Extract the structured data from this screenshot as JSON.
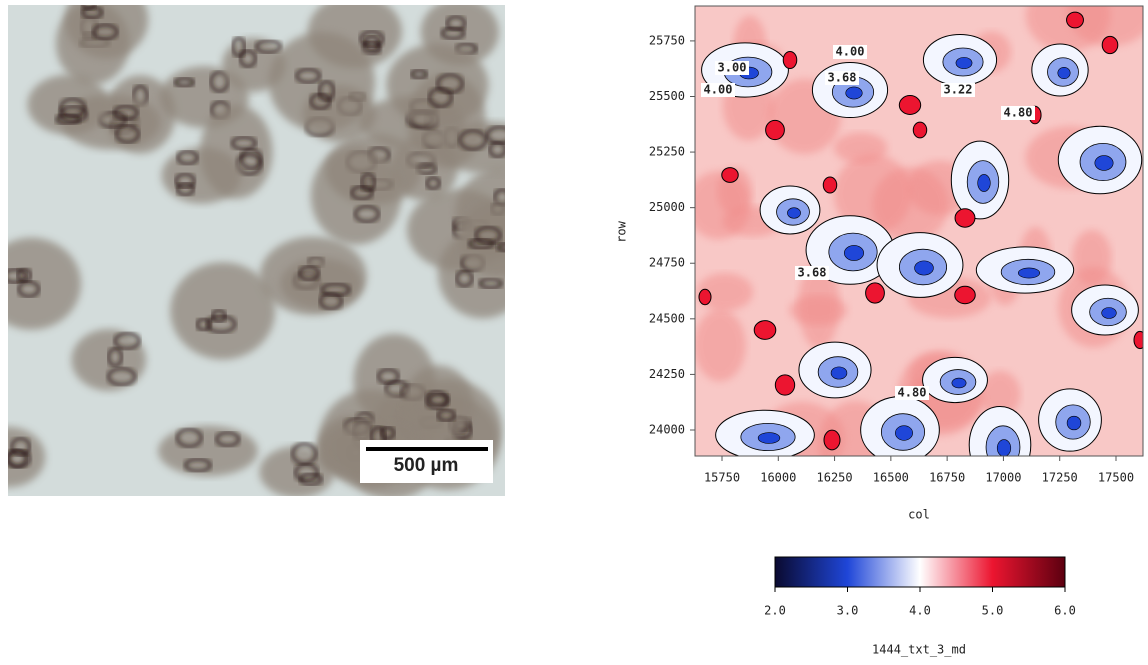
{
  "micrograph": {
    "scale_bar_label": "500 µm"
  },
  "chart_data": {
    "type": "contour",
    "xlabel": "col",
    "ylabel": "row",
    "xlim": [
      15630,
      17620
    ],
    "xticks": [
      15750,
      16000,
      16250,
      16500,
      16750,
      17000,
      17250,
      17500
    ],
    "ylim": [
      23883,
      25907
    ],
    "yticks": [
      24000,
      24250,
      24500,
      24750,
      25000,
      25250,
      25500,
      25750
    ],
    "contour_labels": [
      "4.00",
      "3.00",
      "4.00",
      "3.68",
      "3.22",
      "4.80",
      "3.68",
      "4.80"
    ],
    "colorbar": {
      "label": "1444_txt_3_md",
      "lim": [
        2,
        6
      ],
      "ticks": [
        {
          "value": 2,
          "label": "2.0"
        },
        {
          "value": 3,
          "label": "3.0"
        },
        {
          "value": 4,
          "label": "4.0"
        },
        {
          "value": 5,
          "label": "5.0"
        },
        {
          "value": 6,
          "label": "6.0"
        }
      ],
      "colors": [
        "#0a0a30",
        "#1f46d8",
        "#ffffff",
        "#ec1530",
        "#5c0010"
      ]
    }
  }
}
